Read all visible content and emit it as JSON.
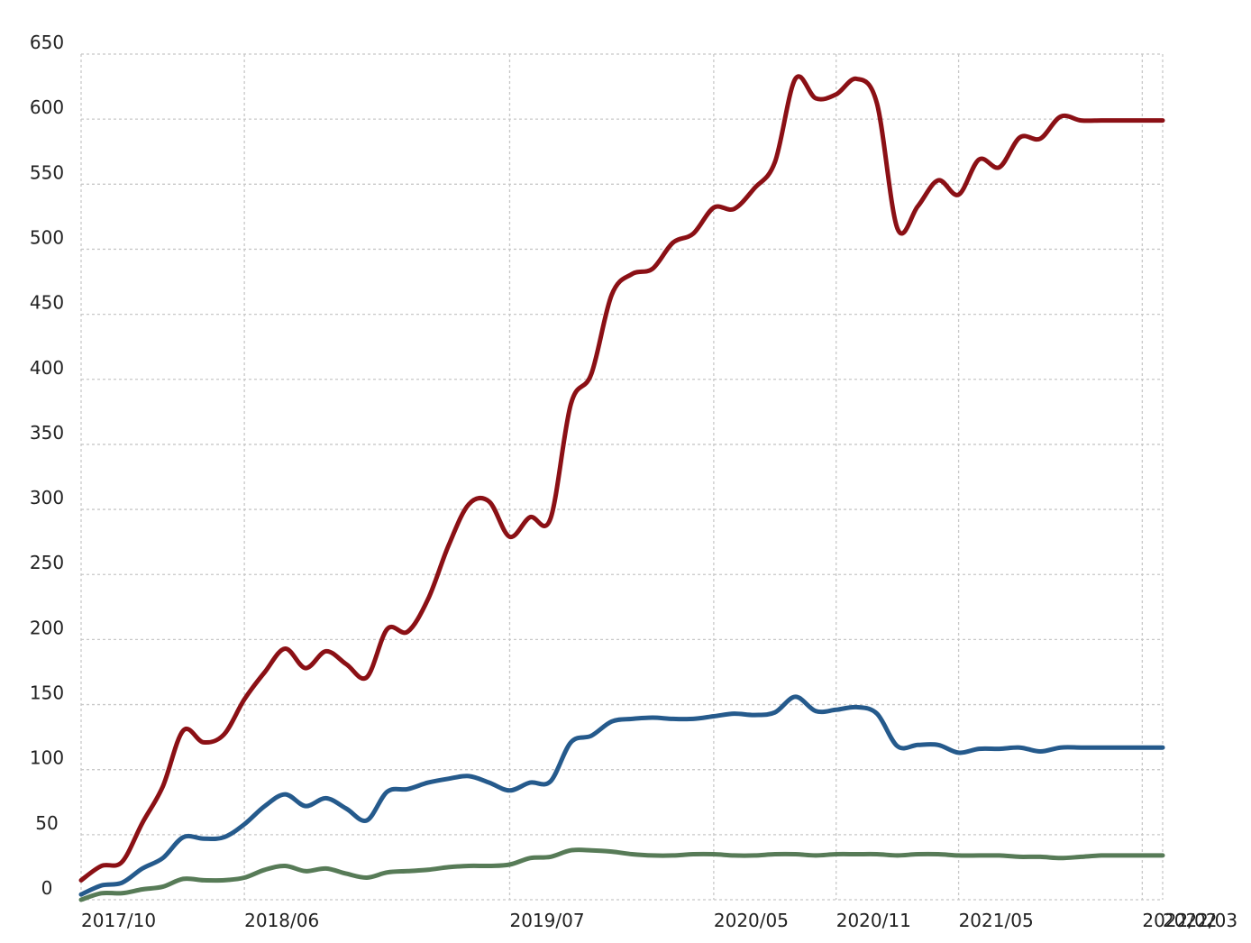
{
  "chart_data": {
    "type": "line",
    "title": "",
    "xlabel": "",
    "ylabel": "",
    "ylim": [
      0,
      650
    ],
    "y_ticks": [
      0,
      50,
      100,
      150,
      200,
      250,
      300,
      350,
      400,
      450,
      500,
      550,
      600,
      650
    ],
    "x_tick_labels": [
      "2017/10",
      "2018/06",
      "2019/07",
      "2020/05",
      "2020/11",
      "2021/05",
      "2022/02",
      "2022/03"
    ],
    "grid": true,
    "legend": "none",
    "colors": [
      "#8b1015",
      "#255a8c",
      "#577b57"
    ],
    "x": [
      "2017/10",
      "2017/11",
      "2017/12",
      "2018/01",
      "2018/02",
      "2018/03",
      "2018/04",
      "2018/05",
      "2018/06",
      "2018/07",
      "2018/08",
      "2018/09",
      "2018/10",
      "2018/11",
      "2018/12",
      "2019/01",
      "2019/02",
      "2019/03",
      "2019/04",
      "2019/05",
      "2019/06",
      "2019/07",
      "2019/08",
      "2019/09",
      "2019/10",
      "2019/11",
      "2019/12",
      "2020/01",
      "2020/02",
      "2020/03",
      "2020/04",
      "2020/05",
      "2020/06",
      "2020/07",
      "2020/08",
      "2020/09",
      "2020/10",
      "2020/11",
      "2020/12",
      "2021/01",
      "2021/02",
      "2021/03",
      "2021/04",
      "2021/05",
      "2021/06",
      "2021/07",
      "2021/08",
      "2021/09",
      "2021/10",
      "2021/11",
      "2021/12",
      "2022/01",
      "2022/02",
      "2022/03"
    ],
    "series": [
      {
        "values": [
          15,
          26,
          29,
          59,
          87,
          130,
          121,
          127,
          154,
          175,
          193,
          178,
          191,
          181,
          171,
          208,
          206,
          231,
          272,
          304,
          306,
          279,
          294,
          293,
          381,
          404,
          465,
          481,
          485,
          505,
          512,
          532,
          531,
          547,
          567,
          631,
          616,
          619,
          631,
          612,
          516,
          533,
          553,
          542,
          569,
          563,
          586,
          585,
          602,
          599,
          599,
          599,
          599,
          599
        ]
      },
      {
        "values": [
          4,
          11,
          13,
          24,
          32,
          48,
          47,
          48,
          58,
          72,
          81,
          72,
          78,
          70,
          61,
          83,
          85,
          90,
          93,
          95,
          90,
          84,
          90,
          91,
          121,
          126,
          137,
          139,
          140,
          139,
          139,
          141,
          143,
          142,
          144,
          156,
          145,
          146,
          148,
          143,
          118,
          119,
          119,
          113,
          116,
          116,
          117,
          114,
          117,
          117,
          117,
          117,
          117,
          117
        ]
      },
      {
        "values": [
          0,
          5,
          5,
          8,
          10,
          16,
          15,
          15,
          17,
          23,
          26,
          22,
          24,
          20,
          17,
          21,
          22,
          23,
          25,
          26,
          26,
          27,
          32,
          33,
          38,
          38,
          37,
          35,
          34,
          34,
          35,
          35,
          34,
          34,
          35,
          35,
          34,
          35,
          35,
          35,
          34,
          35,
          35,
          34,
          34,
          34,
          33,
          33,
          32,
          33,
          34,
          34,
          34,
          34
        ]
      }
    ]
  }
}
